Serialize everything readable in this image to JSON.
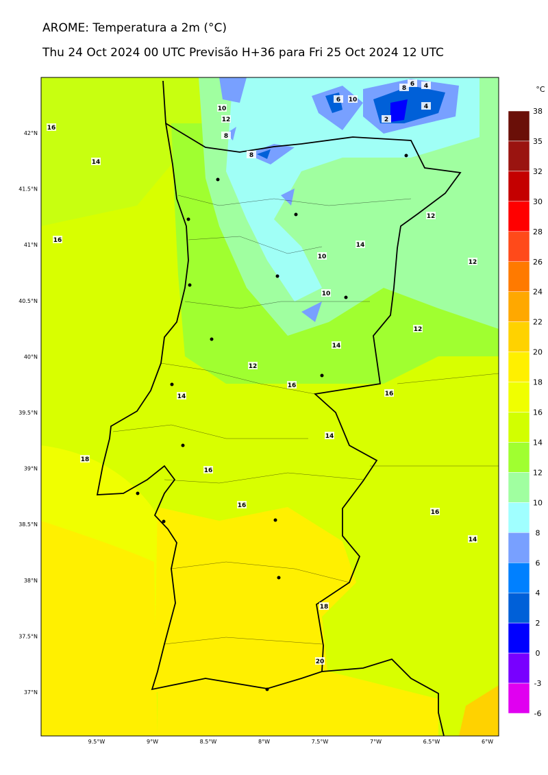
{
  "header": {
    "title": "AROME: Temperatura a 2m (°C)",
    "subtitle": "Thu 24 Oct 2024 00 UTC Previsão H+36 para Fri 25 Oct 2024 12 UTC"
  },
  "map": {
    "lat_labels": [
      "42°N",
      "41.5°N",
      "41°N",
      "40.5°N",
      "40°N",
      "39.5°N",
      "39°N",
      "38.5°N",
      "38°N",
      "37.5°N",
      "37°N"
    ],
    "lon_labels": [
      "9.5°W",
      "9°W",
      "8.5°W",
      "8°W",
      "7.5°W",
      "7°W",
      "6.5°W",
      "6°W"
    ],
    "contour_labels": [
      16,
      14,
      16,
      18,
      10,
      12,
      8,
      8,
      6,
      10,
      6,
      8,
      4,
      4,
      2,
      12,
      14,
      10,
      12,
      10,
      12,
      14,
      12,
      16,
      16,
      14,
      14,
      16,
      16,
      16,
      14,
      18,
      20
    ]
  },
  "colorbar": {
    "unit": "°C",
    "levels": [
      38,
      35,
      32,
      30,
      28,
      26,
      24,
      22,
      20,
      18,
      16,
      14,
      12,
      10,
      8,
      6,
      4,
      2,
      0,
      -3,
      -6
    ],
    "colors": [
      "#6a0f08",
      "#9a1410",
      "#c40000",
      "#ff0000",
      "#ff4a1a",
      "#ff7a00",
      "#ffa800",
      "#ffd200",
      "#fff000",
      "#f0ff00",
      "#d2ff00",
      "#a0ff30",
      "#a0ffa0",
      "#a0ffff",
      "#78a0ff",
      "#0080ff",
      "#0060d8",
      "#0000ff",
      "#7800ff",
      "#e000f0"
    ]
  }
}
